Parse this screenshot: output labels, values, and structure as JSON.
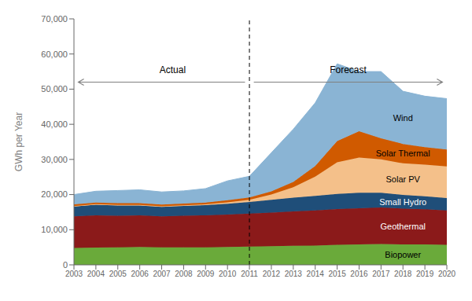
{
  "chart_data": {
    "type": "area",
    "stacked": true,
    "x": [
      2003,
      2004,
      2005,
      2006,
      2007,
      2008,
      2009,
      2010,
      2011,
      2012,
      2013,
      2014,
      2015,
      2016,
      2017,
      2018,
      2019,
      2020
    ],
    "xlim": [
      2003,
      2020
    ],
    "xticks": [
      2003,
      2004,
      2005,
      2006,
      2007,
      2008,
      2009,
      2010,
      2011,
      2012,
      2013,
      2014,
      2015,
      2016,
      2017,
      2018,
      2019,
      2020
    ],
    "ylabel": "GWh per Year",
    "ylim": [
      0,
      70000
    ],
    "yticks": [
      0,
      {
        "value": 10000,
        "label": "10,000"
      },
      {
        "value": 20000,
        "label": "20,000"
      },
      {
        "value": 30000,
        "label": "30,000"
      },
      {
        "value": 40000,
        "label": "40,000"
      },
      {
        "value": 50000,
        "label": "50,000"
      },
      {
        "value": 60000,
        "label": "60,000"
      },
      {
        "value": 70000,
        "label": "70,000"
      }
    ],
    "grid": false,
    "series": [
      {
        "name": "Biopower",
        "color": "#6aaa3a",
        "values": [
          4800,
          4900,
          5000,
          5100,
          5000,
          5000,
          5000,
          5100,
          5200,
          5300,
          5400,
          5500,
          5700,
          5800,
          5900,
          5800,
          5800,
          5700
        ]
      },
      {
        "name": "Geothermal",
        "color": "#8b1a1a",
        "values": [
          9000,
          9200,
          9000,
          9000,
          8800,
          9000,
          9100,
          9200,
          9400,
          9600,
          9800,
          10000,
          10200,
          10300,
          10400,
          10200,
          10000,
          9800
        ]
      },
      {
        "name": "Small Hydro",
        "color": "#1f4e79",
        "values": [
          2800,
          3000,
          2900,
          2800,
          2700,
          2800,
          2900,
          3100,
          3300,
          3600,
          3900,
          4100,
          4300,
          4400,
          4200,
          3900,
          3700,
          3500
        ]
      },
      {
        "name": "Solar PV",
        "color": "#f4c08a",
        "values": [
          100,
          150,
          150,
          150,
          150,
          150,
          200,
          400,
          600,
          1500,
          3000,
          5500,
          9000,
          10000,
          9500,
          9000,
          9000,
          9000
        ]
      },
      {
        "name": "Solar Thermal",
        "color": "#d05a00",
        "values": [
          500,
          500,
          500,
          500,
          500,
          500,
          500,
          600,
          700,
          900,
          1500,
          3000,
          6000,
          7500,
          6000,
          5500,
          5000,
          4800
        ]
      },
      {
        "name": "Wind",
        "color": "#8ab4d4",
        "values": [
          2800,
          3200,
          3600,
          3800,
          3600,
          3600,
          4000,
          5500,
          6000,
          11000,
          15000,
          18000,
          22000,
          17000,
          19000,
          15000,
          14500,
          14500
        ]
      }
    ],
    "vline": 2011,
    "annotations": [
      {
        "text": "Actual",
        "x": 2007.5,
        "y": 54000
      },
      {
        "text": "Forecast",
        "x": 2015.5,
        "y": 54000
      }
    ],
    "arrows": [
      {
        "x_from": 2010.8,
        "x_to": 2003.2,
        "y": 52000
      },
      {
        "x_from": 2011.2,
        "x_to": 2019.8,
        "y": 52000
      }
    ]
  }
}
